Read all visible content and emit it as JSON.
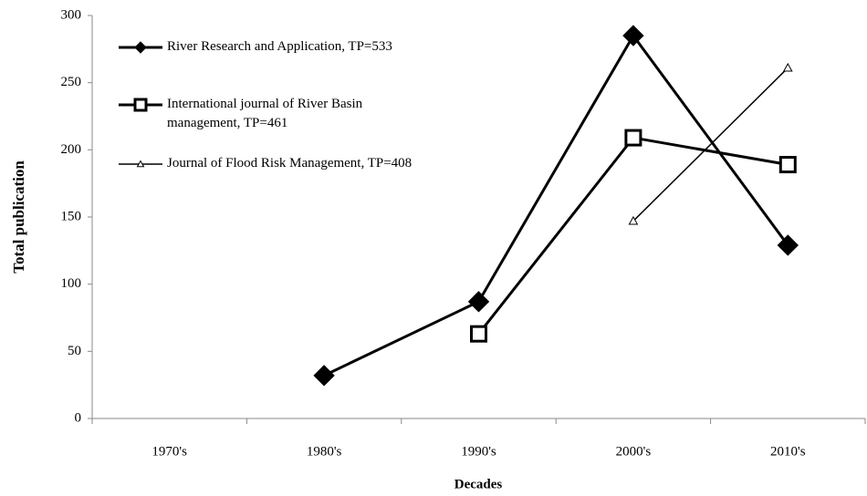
{
  "chart_data": {
    "type": "line",
    "x_label": "Decades",
    "y_label": "Total publication",
    "categories": [
      "1970's",
      "1980's",
      "1990's",
      "2000's",
      "2010's"
    ],
    "series": [
      {
        "name": "River Research and Application, TP=533",
        "color": "#000000",
        "marker": "diamond",
        "values": [
          null,
          32,
          87,
          285,
          129
        ]
      },
      {
        "name": "International journal of River Basin management, TP=461",
        "color": "#000000",
        "marker": "square",
        "values": [
          null,
          null,
          63,
          209,
          189
        ]
      },
      {
        "name": "Journal of Flood Risk Management, TP=408",
        "color": "#000000",
        "marker": "triangle",
        "values": [
          null,
          null,
          null,
          147,
          261
        ]
      }
    ],
    "ylim": [
      0,
      300
    ],
    "yticks": [
      0,
      50,
      100,
      150,
      200,
      250,
      300
    ],
    "grid": false,
    "legend": "upper left"
  }
}
